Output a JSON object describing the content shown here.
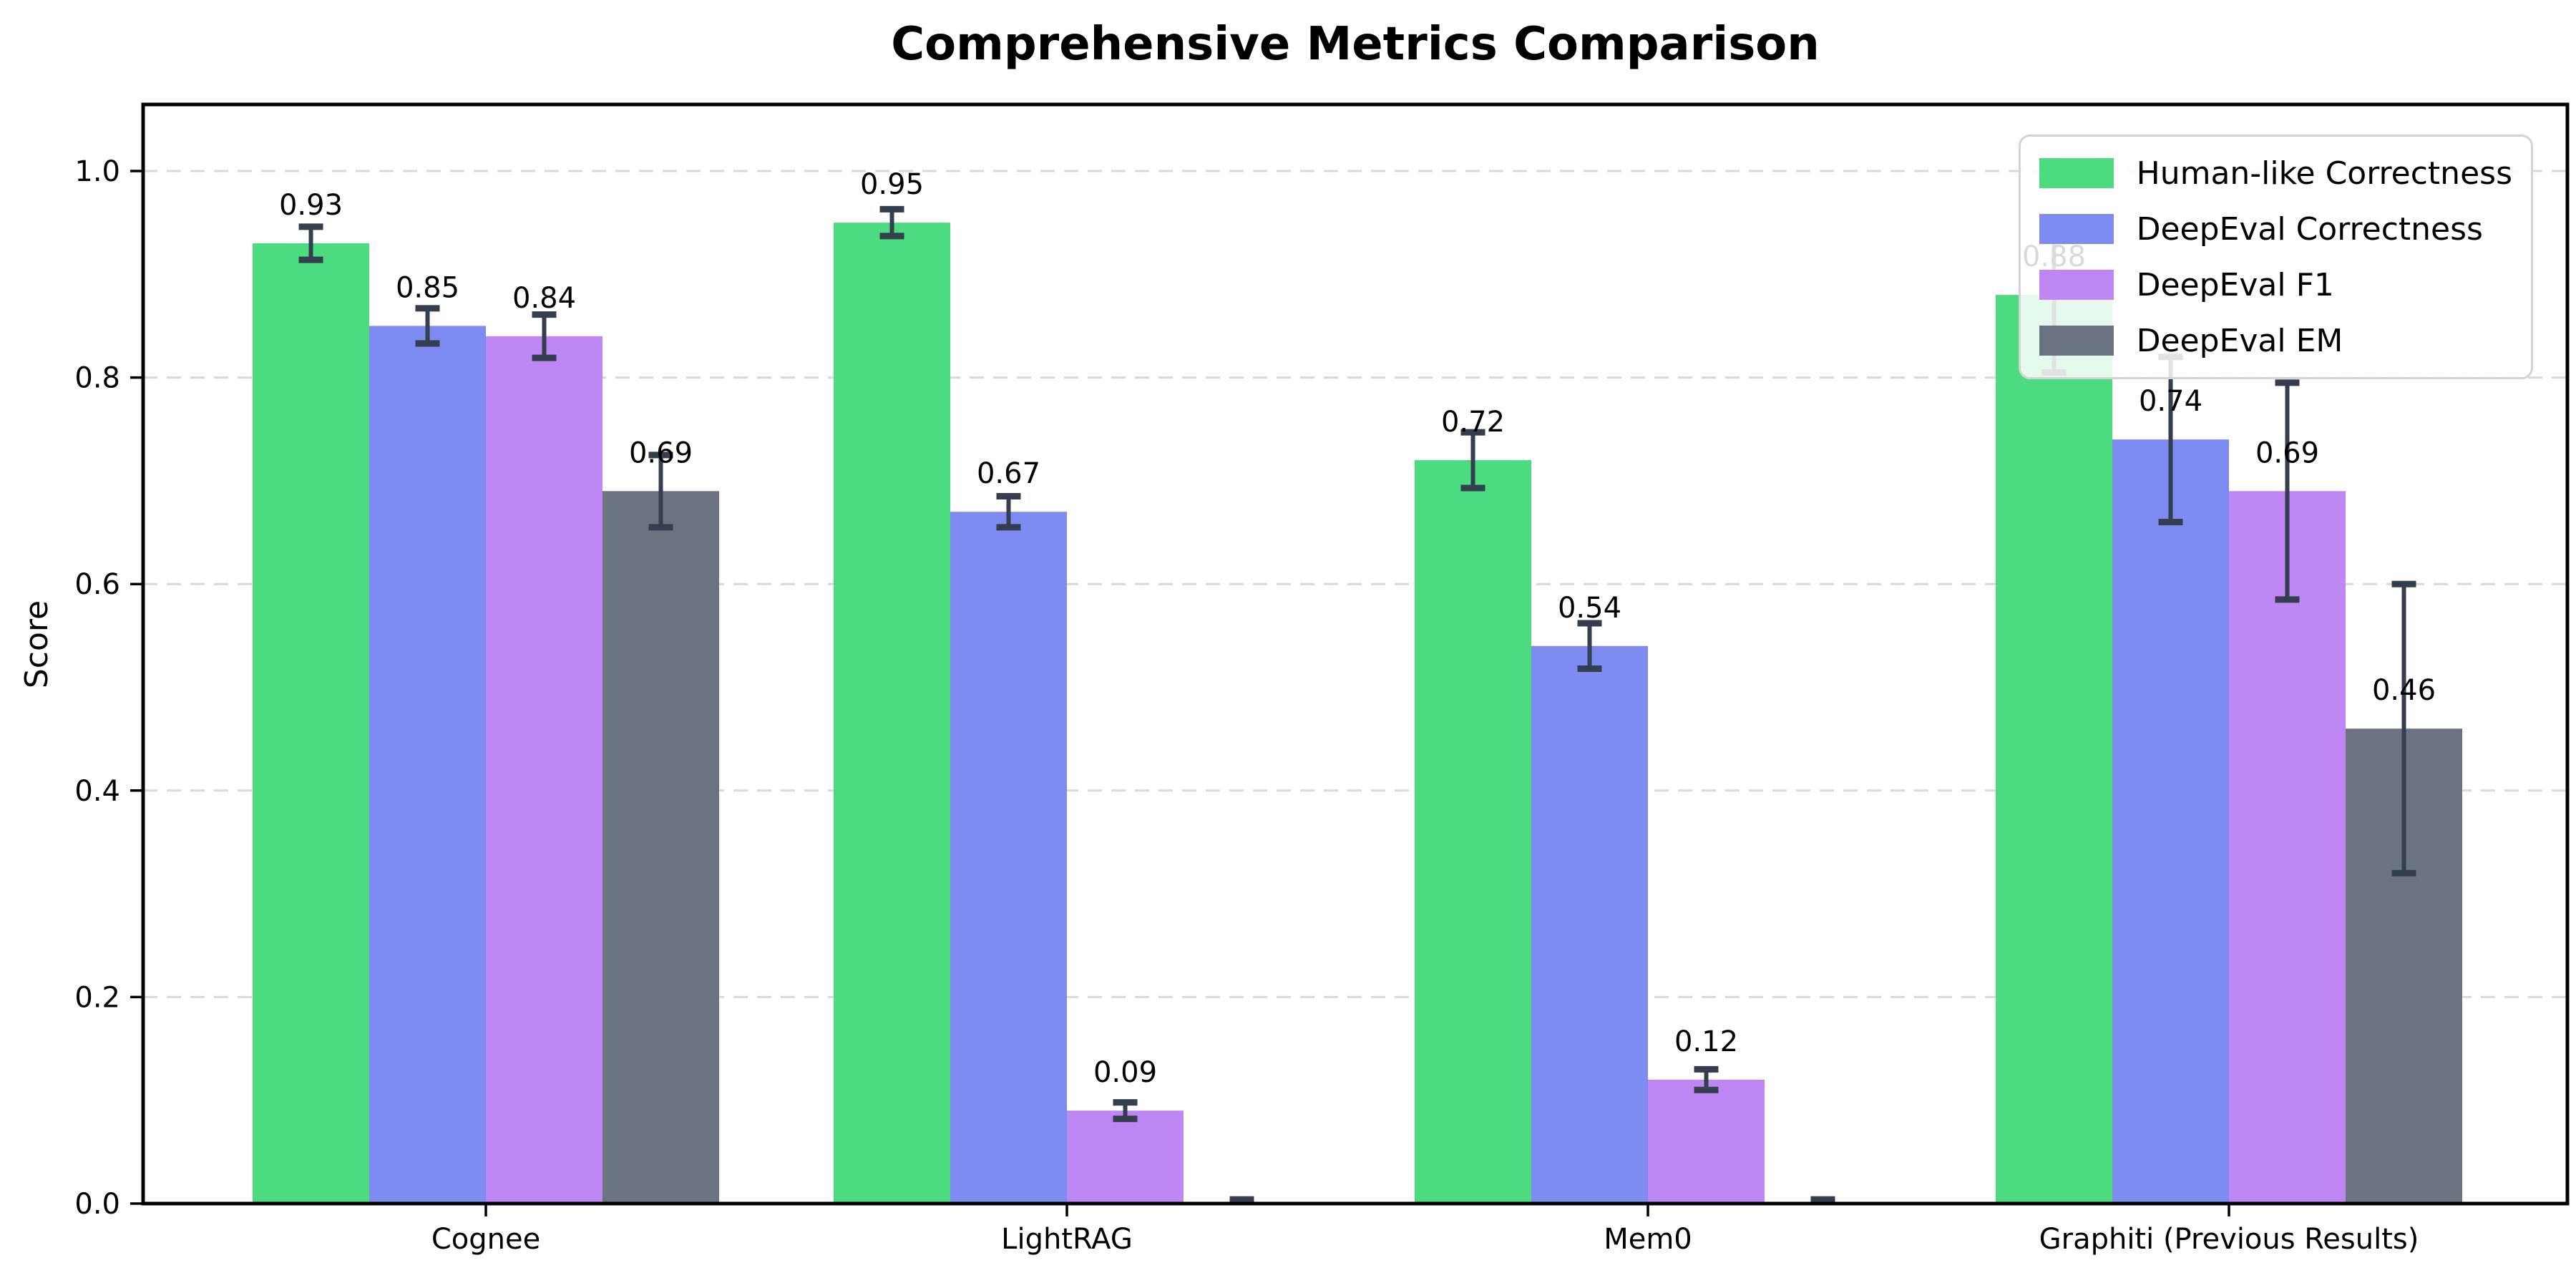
{
  "figure": {
    "background": "#ffffff"
  },
  "chart_data": {
    "type": "bar",
    "title": "Comprehensive Metrics Comparison",
    "ylabel": "Score",
    "xlabel": "",
    "categories": [
      "Cognee",
      "LightRAG",
      "Mem0",
      "Graphiti (Previous Results)"
    ],
    "ylim": [
      0,
      1.065
    ],
    "yticks": {
      "values": [
        0.0,
        0.2,
        0.4,
        0.6,
        0.8,
        1.0
      ],
      "labels": [
        "0.0",
        "0.2",
        "0.4",
        "0.6",
        "0.8",
        "1.0"
      ]
    },
    "grid": {
      "axis": "y",
      "style": "dashed",
      "color": "#d9d9d9"
    },
    "legend": {
      "position": "upper right",
      "border_color": "#d4d4d4"
    },
    "error_bar_color": "#333f4e",
    "axis_color": "#000000",
    "series": [
      {
        "name": "Human-like Correctness",
        "color": "#4cdb7f",
        "values": [
          0.93,
          0.95,
          0.72,
          0.88
        ],
        "errors": [
          0.016,
          0.013,
          0.027,
          0.075
        ],
        "value_labels": [
          "0.93",
          "0.95",
          "0.72",
          "0.88"
        ]
      },
      {
        "name": "DeepEval Correctness",
        "color": "#7e8cf2",
        "values": [
          0.85,
          0.67,
          0.54,
          0.74
        ],
        "errors": [
          0.017,
          0.015,
          0.022,
          0.08
        ],
        "value_labels": [
          "0.85",
          "0.67",
          "0.54",
          "0.74"
        ]
      },
      {
        "name": "DeepEval F1",
        "color": "#bf86f5",
        "values": [
          0.84,
          0.09,
          0.12,
          0.69
        ],
        "errors": [
          0.021,
          0.008,
          0.01,
          0.105
        ],
        "value_labels": [
          "0.84",
          "0.09",
          "0.12",
          "0.69"
        ]
      },
      {
        "name": "DeepEval EM",
        "color": "#6b7280",
        "values": [
          0.69,
          0.0,
          0.0,
          0.46
        ],
        "errors": [
          0.035,
          0.004,
          0.004,
          0.14
        ],
        "value_labels": [
          "0.69",
          "",
          "",
          "0.46"
        ]
      }
    ]
  }
}
